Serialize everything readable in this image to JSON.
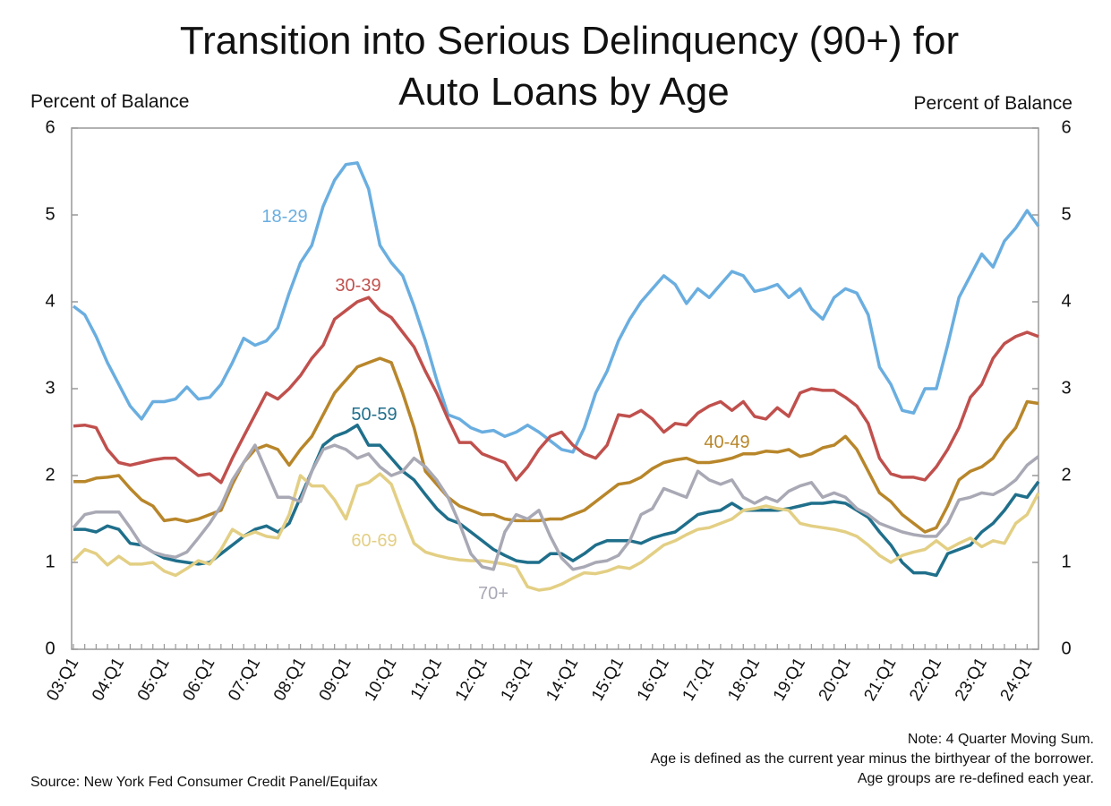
{
  "chart_data": {
    "type": "line",
    "title": [
      "Transition into Serious Delinquency (90+) for",
      "Auto Loans by Age"
    ],
    "y_label": "Percent of Balance",
    "y2_label": "Percent of Balance",
    "ylim": [
      0,
      6
    ],
    "yticks": [
      0,
      1,
      2,
      3,
      4,
      5,
      6
    ],
    "y2lim": [
      0,
      6
    ],
    "y2ticks": [
      0,
      1,
      2,
      3,
      4,
      5,
      6
    ],
    "categories": [
      "03:Q1",
      null,
      null,
      null,
      "04:Q1",
      null,
      null,
      null,
      "05:Q1",
      null,
      null,
      null,
      "06:Q1",
      null,
      null,
      null,
      "07:Q1",
      null,
      null,
      null,
      "08:Q1",
      null,
      null,
      null,
      "09:Q1",
      null,
      null,
      null,
      "10:Q1",
      null,
      null,
      null,
      "11:Q1",
      null,
      null,
      null,
      "12:Q1",
      null,
      null,
      null,
      "13:Q1",
      null,
      null,
      null,
      "14:Q1",
      null,
      null,
      null,
      "15:Q1",
      null,
      null,
      null,
      "16:Q1",
      null,
      null,
      null,
      "17:Q1",
      null,
      null,
      null,
      "18:Q1",
      null,
      null,
      null,
      "19:Q1",
      null,
      null,
      null,
      "20:Q1",
      null,
      null,
      null,
      "21:Q1",
      null,
      null,
      null,
      "22:Q1",
      null,
      null,
      null,
      "23:Q1",
      null,
      null,
      null,
      "24:Q1",
      null
    ],
    "series": [
      {
        "name": "18-29",
        "color": "#6aaee0",
        "values": [
          3.95,
          3.85,
          3.6,
          3.3,
          3.05,
          2.8,
          2.65,
          2.85,
          2.85,
          2.88,
          3.02,
          2.88,
          2.9,
          3.05,
          3.3,
          3.58,
          3.5,
          3.55,
          3.7,
          4.1,
          4.45,
          4.65,
          5.1,
          5.4,
          5.58,
          5.6,
          5.3,
          4.65,
          4.45,
          4.3,
          3.95,
          3.55,
          3.1,
          2.7,
          2.65,
          2.55,
          2.5,
          2.52,
          2.45,
          2.5,
          2.58,
          2.5,
          2.4,
          2.3,
          2.27,
          2.55,
          2.95,
          3.2,
          3.55,
          3.8,
          4.0,
          4.15,
          4.3,
          4.2,
          3.98,
          4.15,
          4.05,
          4.2,
          4.35,
          4.3,
          4.12,
          4.15,
          4.2,
          4.05,
          4.15,
          3.92,
          3.8,
          4.05,
          4.15,
          4.1,
          3.85,
          3.25,
          3.05,
          2.75,
          2.72,
          3.0,
          3.0,
          3.5,
          4.05,
          4.3,
          4.55,
          4.4,
          4.7,
          4.85,
          5.05,
          4.87
        ]
      },
      {
        "name": "30-39",
        "color": "#c0504d",
        "values": [
          2.57,
          2.58,
          2.55,
          2.3,
          2.15,
          2.12,
          2.15,
          2.18,
          2.2,
          2.2,
          2.1,
          2.0,
          2.02,
          1.92,
          2.2,
          2.45,
          2.7,
          2.95,
          2.88,
          3.0,
          3.15,
          3.35,
          3.5,
          3.8,
          3.9,
          4.0,
          4.05,
          3.9,
          3.82,
          3.65,
          3.48,
          3.2,
          2.95,
          2.65,
          2.38,
          2.38,
          2.25,
          2.2,
          2.15,
          1.95,
          2.1,
          2.3,
          2.45,
          2.5,
          2.35,
          2.25,
          2.2,
          2.35,
          2.7,
          2.68,
          2.75,
          2.65,
          2.5,
          2.6,
          2.58,
          2.72,
          2.8,
          2.85,
          2.75,
          2.85,
          2.68,
          2.65,
          2.78,
          2.68,
          2.95,
          3.0,
          2.98,
          2.98,
          2.9,
          2.8,
          2.6,
          2.2,
          2.02,
          1.98,
          1.98,
          1.95,
          2.1,
          2.3,
          2.55,
          2.9,
          3.05,
          3.35,
          3.52,
          3.6,
          3.65,
          3.6
        ]
      },
      {
        "name": "40-49",
        "color": "#b8862a",
        "values": [
          1.93,
          1.93,
          1.97,
          1.98,
          2.0,
          1.85,
          1.72,
          1.65,
          1.48,
          1.5,
          1.47,
          1.5,
          1.55,
          1.6,
          1.9,
          2.15,
          2.3,
          2.35,
          2.3,
          2.12,
          2.3,
          2.45,
          2.7,
          2.95,
          3.1,
          3.25,
          3.3,
          3.35,
          3.3,
          2.95,
          2.55,
          2.05,
          1.9,
          1.75,
          1.65,
          1.6,
          1.55,
          1.55,
          1.5,
          1.48,
          1.48,
          1.48,
          1.5,
          1.5,
          1.55,
          1.6,
          1.7,
          1.8,
          1.9,
          1.92,
          1.98,
          2.08,
          2.15,
          2.18,
          2.2,
          2.15,
          2.15,
          2.17,
          2.2,
          2.25,
          2.25,
          2.28,
          2.27,
          2.3,
          2.22,
          2.25,
          2.32,
          2.35,
          2.45,
          2.3,
          2.05,
          1.8,
          1.7,
          1.55,
          1.45,
          1.35,
          1.4,
          1.65,
          1.95,
          2.05,
          2.1,
          2.2,
          2.4,
          2.55,
          2.85,
          2.83
        ]
      },
      {
        "name": "50-59",
        "color": "#1f6f8b",
        "values": [
          1.38,
          1.38,
          1.35,
          1.42,
          1.38,
          1.22,
          1.2,
          1.12,
          1.05,
          1.02,
          1.0,
          0.98,
          1.0,
          1.1,
          1.2,
          1.3,
          1.38,
          1.42,
          1.35,
          1.45,
          1.75,
          2.05,
          2.35,
          2.45,
          2.5,
          2.58,
          2.35,
          2.35,
          2.2,
          2.05,
          1.95,
          1.78,
          1.62,
          1.5,
          1.45,
          1.35,
          1.25,
          1.15,
          1.08,
          1.02,
          1.0,
          1.0,
          1.1,
          1.1,
          1.02,
          1.1,
          1.2,
          1.25,
          1.25,
          1.25,
          1.22,
          1.28,
          1.32,
          1.35,
          1.45,
          1.55,
          1.58,
          1.6,
          1.68,
          1.6,
          1.6,
          1.6,
          1.6,
          1.62,
          1.65,
          1.68,
          1.68,
          1.7,
          1.68,
          1.6,
          1.52,
          1.35,
          1.2,
          1.0,
          0.88,
          0.88,
          0.85,
          1.1,
          1.15,
          1.2,
          1.35,
          1.45,
          1.6,
          1.78,
          1.75,
          1.93
        ]
      },
      {
        "name": "60-69",
        "color": "#e3cf84",
        "values": [
          1.02,
          1.15,
          1.1,
          0.97,
          1.07,
          0.98,
          0.98,
          1.0,
          0.9,
          0.85,
          0.93,
          1.02,
          0.98,
          1.15,
          1.38,
          1.3,
          1.35,
          1.3,
          1.28,
          1.55,
          2.0,
          1.88,
          1.88,
          1.72,
          1.5,
          1.88,
          1.92,
          2.02,
          1.9,
          1.55,
          1.22,
          1.12,
          1.08,
          1.05,
          1.03,
          1.02,
          1.02,
          1.0,
          0.98,
          0.95,
          0.72,
          0.68,
          0.7,
          0.75,
          0.82,
          0.88,
          0.87,
          0.9,
          0.95,
          0.93,
          1.0,
          1.1,
          1.2,
          1.25,
          1.32,
          1.38,
          1.4,
          1.45,
          1.5,
          1.6,
          1.62,
          1.65,
          1.62,
          1.6,
          1.45,
          1.42,
          1.4,
          1.38,
          1.35,
          1.3,
          1.2,
          1.08,
          1.0,
          1.08,
          1.12,
          1.15,
          1.25,
          1.15,
          1.22,
          1.28,
          1.18,
          1.25,
          1.22,
          1.45,
          1.55,
          1.8
        ]
      },
      {
        "name": "70+",
        "color": "#a9a9b5",
        "values": [
          1.4,
          1.55,
          1.58,
          1.58,
          1.58,
          1.4,
          1.2,
          1.12,
          1.08,
          1.06,
          1.12,
          1.28,
          1.45,
          1.65,
          1.95,
          2.15,
          2.35,
          2.05,
          1.75,
          1.75,
          1.7,
          2.05,
          2.3,
          2.35,
          2.3,
          2.2,
          2.25,
          2.1,
          2.0,
          2.05,
          2.2,
          2.1,
          1.95,
          1.75,
          1.45,
          1.1,
          0.95,
          0.92,
          1.35,
          1.55,
          1.5,
          1.6,
          1.3,
          1.05,
          0.92,
          0.95,
          1.0,
          1.02,
          1.08,
          1.25,
          1.55,
          1.62,
          1.85,
          1.8,
          1.75,
          2.05,
          1.95,
          1.9,
          1.95,
          1.75,
          1.68,
          1.75,
          1.7,
          1.82,
          1.88,
          1.92,
          1.75,
          1.8,
          1.75,
          1.62,
          1.55,
          1.45,
          1.4,
          1.35,
          1.32,
          1.3,
          1.3,
          1.45,
          1.72,
          1.75,
          1.8,
          1.78,
          1.85,
          1.95,
          2.12,
          2.22
        ]
      }
    ],
    "notes": [
      "Note: 4 Quarter Moving Sum.",
      "Age is defined as the current year minus the birthyear of the borrower.",
      "Age groups are re-defined each year."
    ],
    "source": "Source: New York Fed Consumer Credit Panel/Equifax"
  }
}
